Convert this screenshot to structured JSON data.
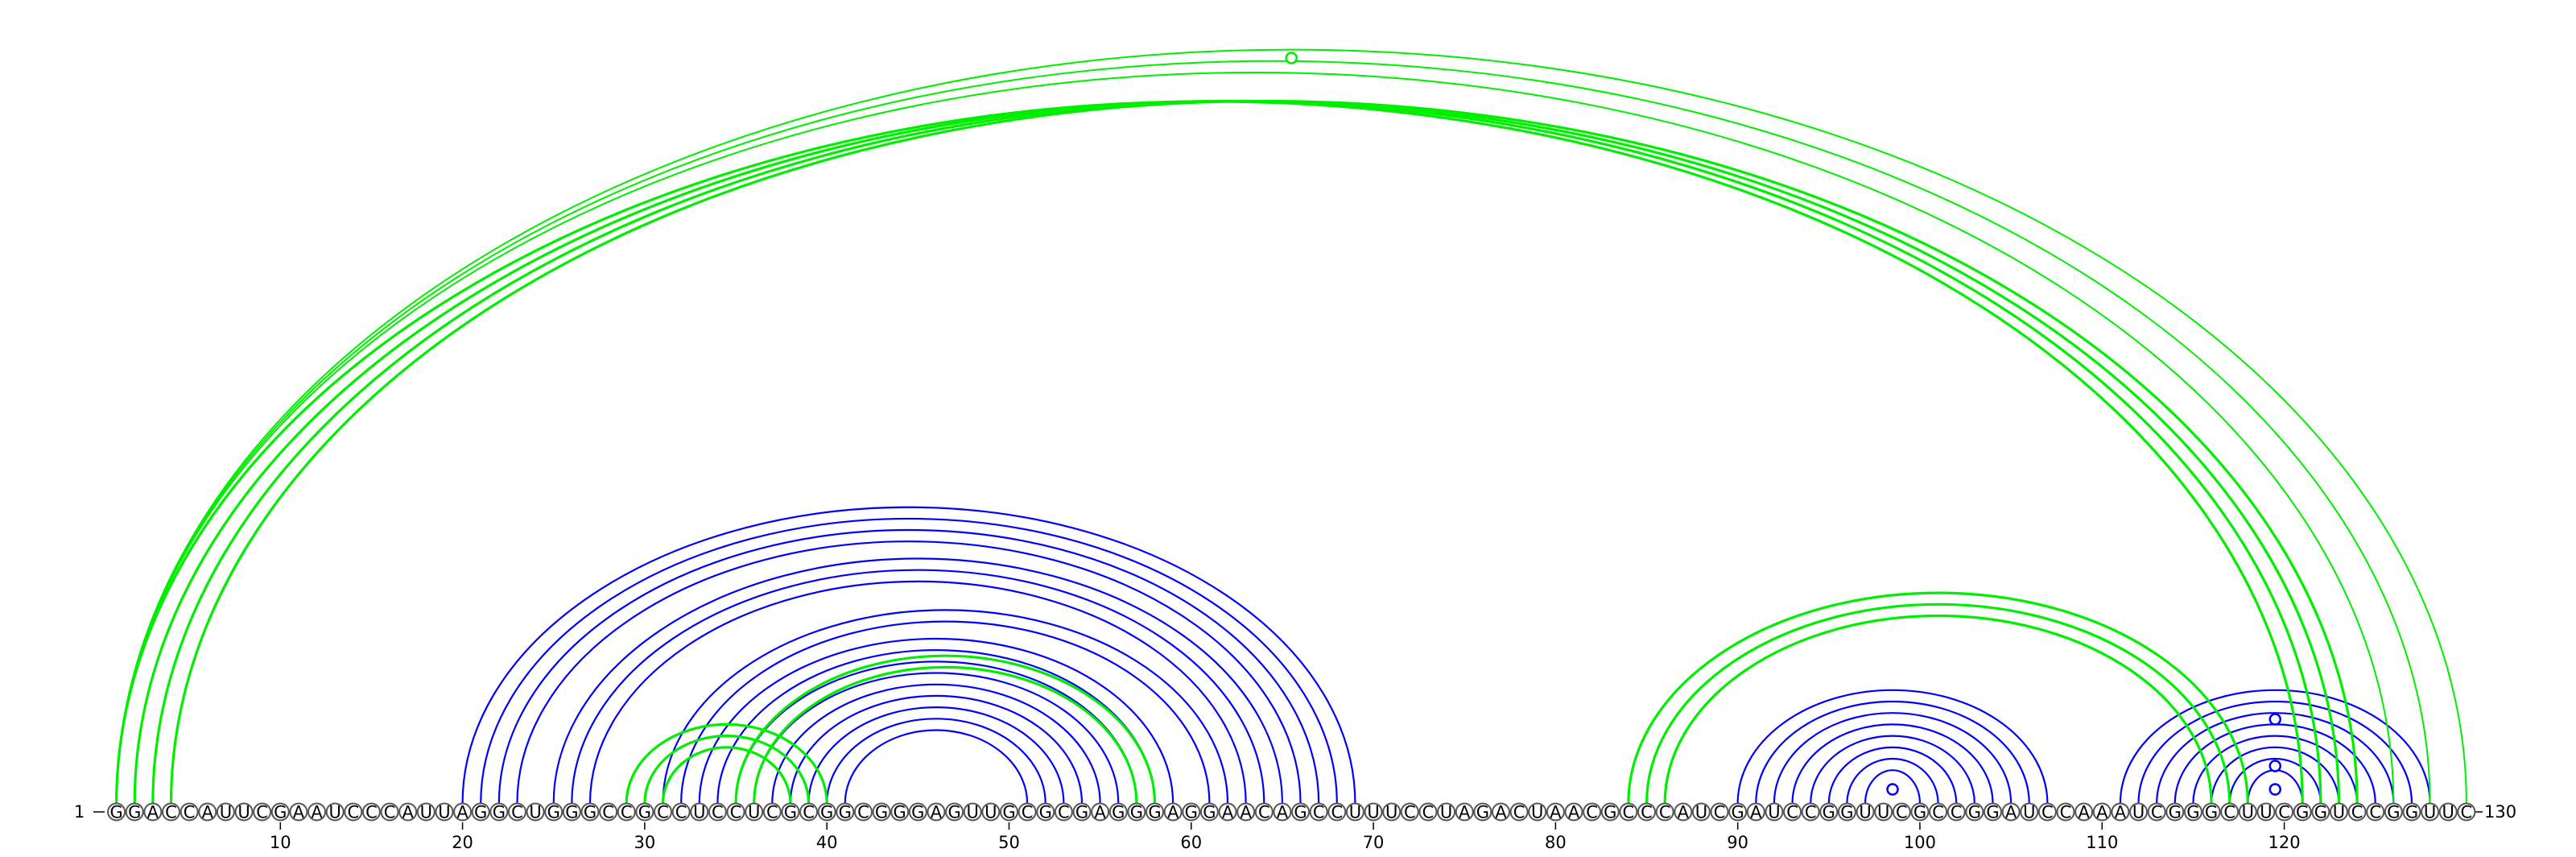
{
  "sequence": "GGACCAUUCGAAUCCCAUUAGGCUGGGCCGCCUCCUCGCGGCGGGAGUUGCGCGAGGGAGGAACAGCCUUUCCUAGACUAACGCCCAUCGAUCCGGUUCGCCGGAUCCAAAUCGGGCUUCGGUCCGGUUC",
  "start_label": "1",
  "end_label": "130",
  "ticks": [
    10,
    20,
    30,
    40,
    50,
    60,
    70,
    80,
    90,
    100,
    110,
    120
  ],
  "colors": {
    "structure_a": "#0000ff",
    "structure_b": "#00ee00",
    "base_outline": "#555555"
  },
  "pairs": {
    "blue": [
      [
        20,
        69
      ],
      [
        21,
        68
      ],
      [
        22,
        67
      ],
      [
        23,
        66
      ],
      [
        25,
        65
      ],
      [
        26,
        64
      ],
      [
        27,
        63
      ],
      [
        31,
        62
      ],
      [
        32,
        61
      ],
      [
        33,
        59
      ],
      [
        34,
        58
      ],
      [
        35,
        57
      ],
      [
        36,
        56
      ],
      [
        37,
        55
      ],
      [
        38,
        54
      ],
      [
        39,
        53
      ],
      [
        40,
        52
      ],
      [
        41,
        51
      ],
      [
        90,
        107
      ],
      [
        91,
        106
      ],
      [
        92,
        105
      ],
      [
        93,
        104
      ],
      [
        94,
        103
      ],
      [
        95,
        102
      ],
      [
        96,
        101
      ],
      [
        97,
        100
      ],
      [
        111,
        128
      ],
      [
        112,
        127
      ],
      [
        113,
        126
      ],
      [
        114,
        125
      ],
      [
        115,
        124
      ],
      [
        116,
        123
      ],
      [
        117,
        122
      ],
      [
        118,
        121
      ]
    ],
    "green": [
      [
        1,
        121
      ],
      [
        2,
        122
      ],
      [
        3,
        123
      ],
      [
        4,
        124
      ],
      [
        29,
        40
      ],
      [
        30,
        39
      ],
      [
        31,
        38
      ],
      [
        35,
        58
      ],
      [
        36,
        57
      ],
      [
        84,
        118
      ],
      [
        85,
        117
      ],
      [
        86,
        116
      ]
    ],
    "green_thin": [
      [
        1,
        126
      ],
      [
        1,
        128
      ],
      [
        1,
        130
      ]
    ]
  },
  "loop_markers": {
    "blue": [
      98.5,
      119.5,
      119.5,
      119.5
    ],
    "green": [
      65.5
    ]
  }
}
